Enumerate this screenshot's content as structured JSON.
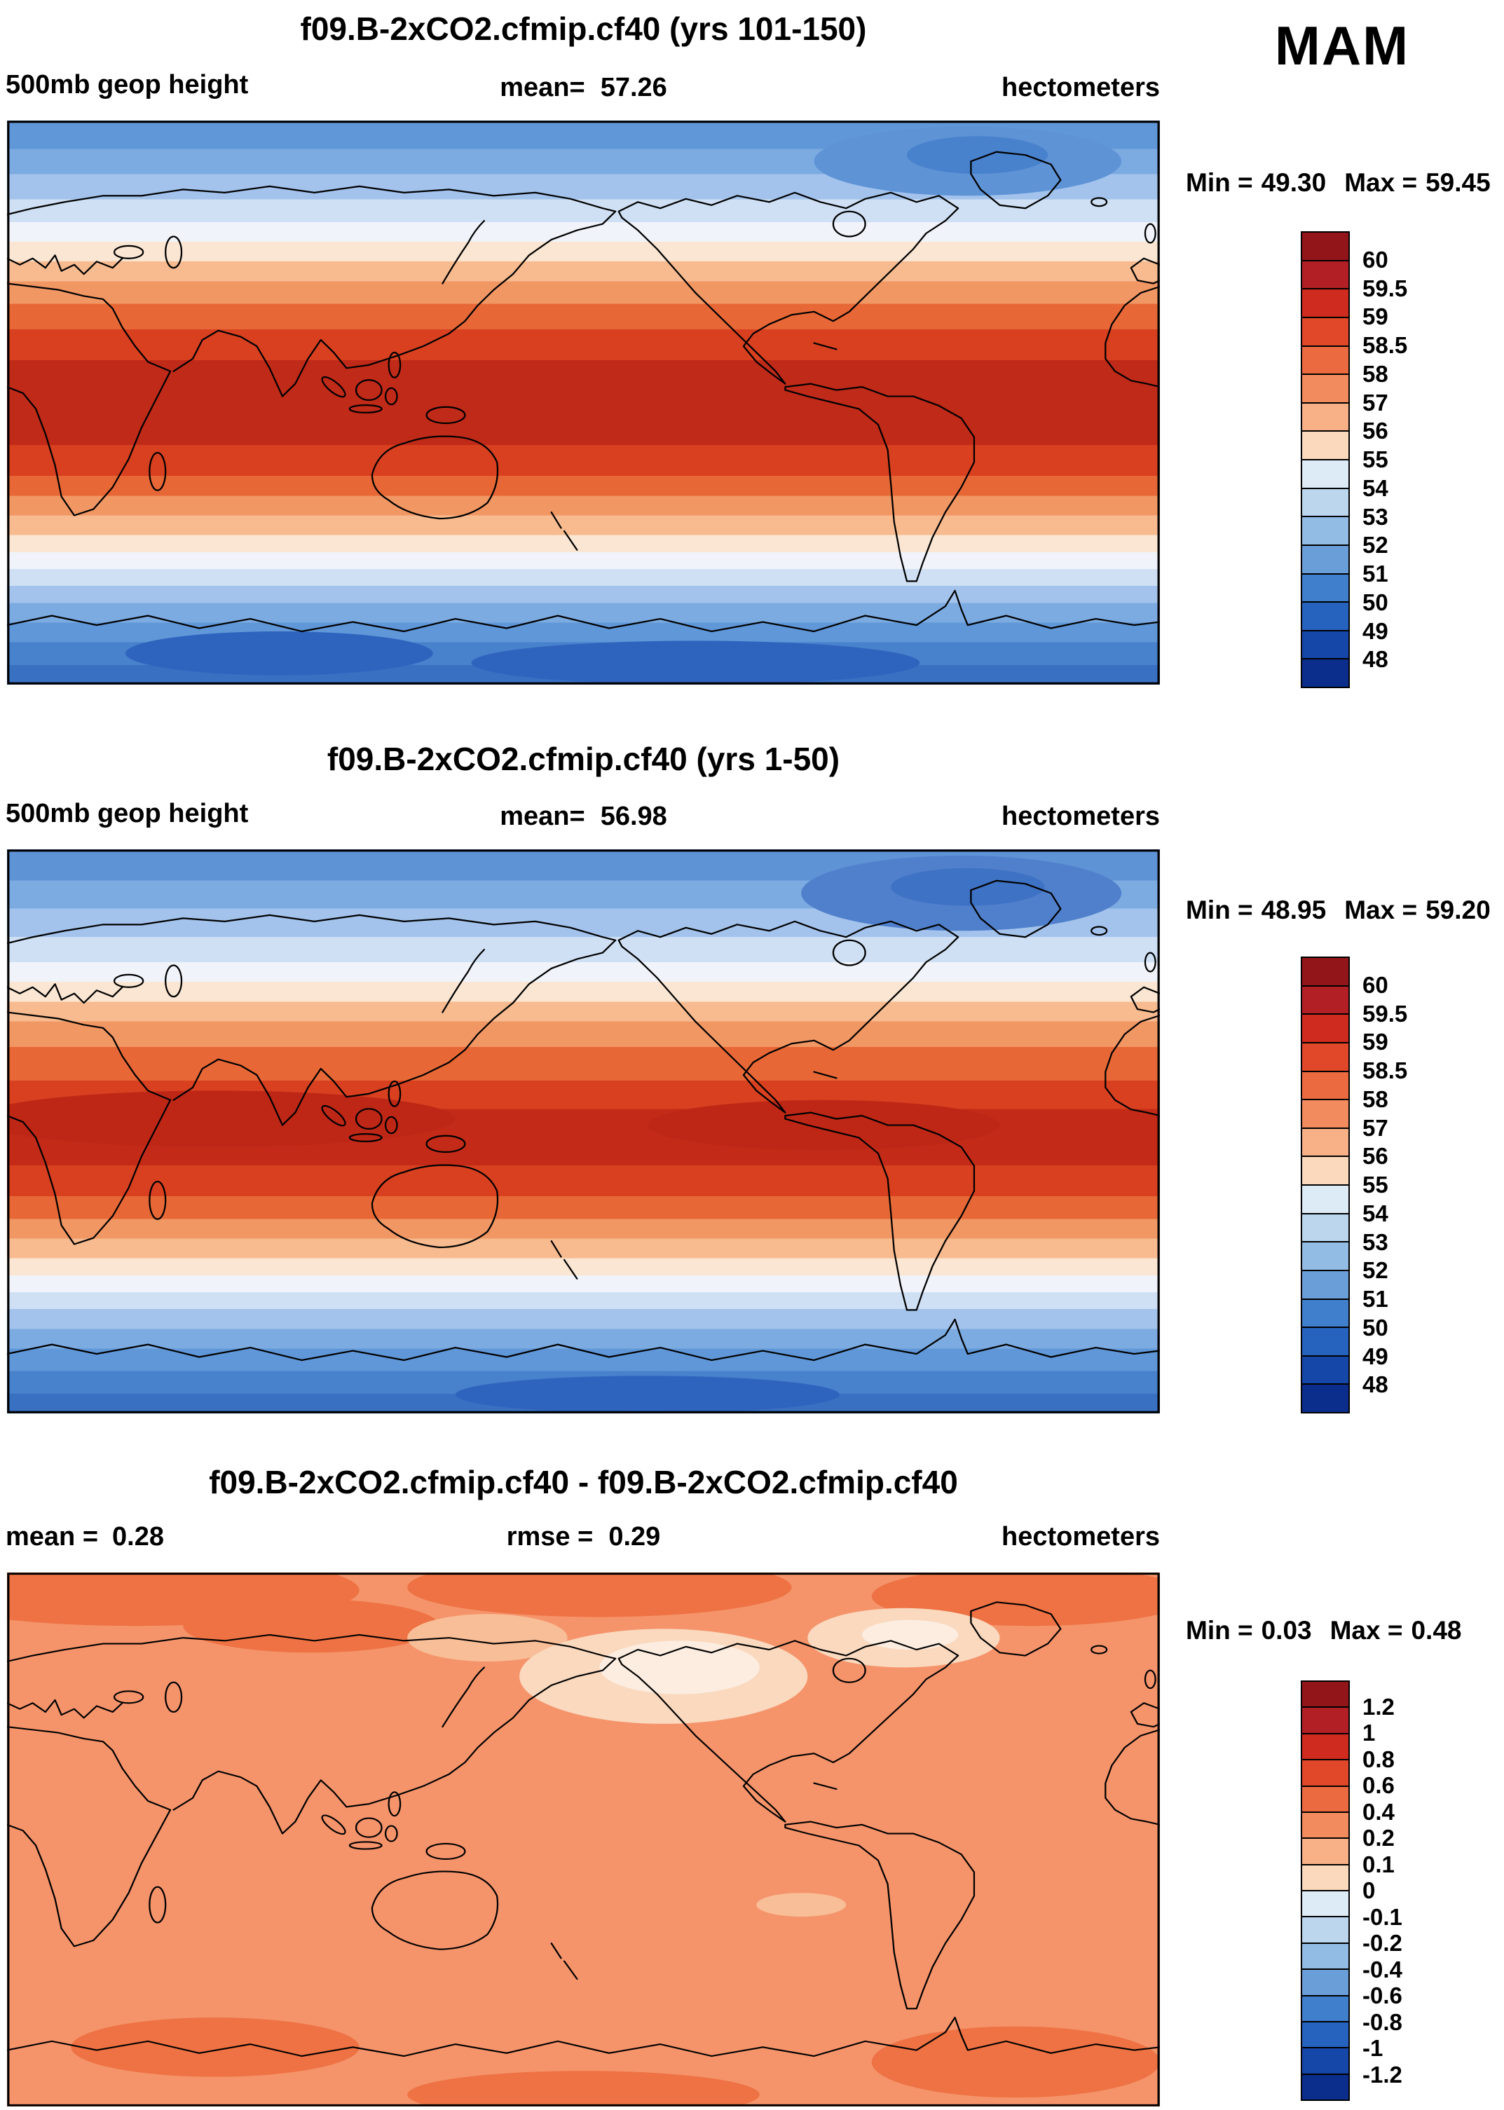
{
  "season_label": "MAM",
  "panels": [
    {
      "title": "f09.B-2xCO2.cfmip.cf40 (yrs 101-150)",
      "field_label": "500mb geop height",
      "mean_label": "mean=",
      "mean_value": "57.26",
      "units": "hectometers",
      "min_label": "Min =",
      "min_value": "49.30",
      "max_label": "Max =",
      "max_value": "59.45",
      "colorbar": {
        "labels": [
          "60",
          "59.5",
          "59",
          "58.5",
          "58",
          "57",
          "56",
          "55",
          "54",
          "53",
          "52",
          "51",
          "50",
          "49",
          "48"
        ],
        "colors": [
          "#921519",
          "#B22025",
          "#CF2B1E",
          "#E1482A",
          "#EC6A40",
          "#F28B5E",
          "#F8B187",
          "#FBD9BC",
          "#DDEBF7",
          "#BCD6EE",
          "#93BCE4",
          "#699ED8",
          "#3F7FCB",
          "#2563BE",
          "#1547A8",
          "#0B2E8C"
        ]
      }
    },
    {
      "title": "f09.B-2xCO2.cfmip.cf40 (yrs 1-50)",
      "field_label": "500mb geop height",
      "mean_label": "mean=",
      "mean_value": "56.98",
      "units": "hectometers",
      "min_label": "Min =",
      "min_value": "48.95",
      "max_label": "Max =",
      "max_value": "59.20",
      "colorbar": {
        "labels": [
          "60",
          "59.5",
          "59",
          "58.5",
          "58",
          "57",
          "56",
          "55",
          "54",
          "53",
          "52",
          "51",
          "50",
          "49",
          "48"
        ],
        "colors": [
          "#921519",
          "#B22025",
          "#CF2B1E",
          "#E1482A",
          "#EC6A40",
          "#F28B5E",
          "#F8B187",
          "#FBD9BC",
          "#DDEBF7",
          "#BCD6EE",
          "#93BCE4",
          "#699ED8",
          "#3F7FCB",
          "#2563BE",
          "#1547A8",
          "#0B2E8C"
        ]
      }
    },
    {
      "title": "f09.B-2xCO2.cfmip.cf40 - f09.B-2xCO2.cfmip.cf40",
      "mean_label": "mean =",
      "mean_value": "0.28",
      "rmse_label": "rmse =",
      "rmse_value": "0.29",
      "units": "hectometers",
      "min_label": "Min =",
      "min_value": "0.03",
      "max_label": "Max =",
      "max_value": "0.48",
      "colorbar": {
        "labels": [
          "1.2",
          "1",
          "0.8",
          "0.6",
          "0.4",
          "0.2",
          "0.1",
          "0",
          "-0.1",
          "-0.2",
          "-0.4",
          "-0.6",
          "-0.8",
          "-1",
          "-1.2"
        ],
        "colors": [
          "#921519",
          "#B22025",
          "#CF2B1E",
          "#E1482A",
          "#EC6A40",
          "#F28B5E",
          "#F8B187",
          "#FBD9BC",
          "#DDEBF7",
          "#BCD6EE",
          "#93BCE4",
          "#699ED8",
          "#3F7FCB",
          "#2563BE",
          "#1547A8",
          "#0B2E8C"
        ]
      }
    }
  ],
  "chart_data": [
    {
      "type": "heatmap",
      "subtype": "filled-contour global lat-lon map",
      "title": "f09.B-2xCO2.cfmip.cf40 (yrs 101-150)",
      "variable": "500mb geop height",
      "units": "hectometers",
      "season": "MAM",
      "mean": 57.26,
      "min": 49.3,
      "max": 59.45,
      "contour_levels": [
        48,
        49,
        50,
        51,
        52,
        53,
        54,
        55,
        56,
        57,
        58,
        58.5,
        59,
        59.5,
        60
      ],
      "legend_position": "right",
      "pattern": "zonal bands: highest values (59-60) across tropics and subtropics, decreasing poleward to 48-52 near both poles"
    },
    {
      "type": "heatmap",
      "subtype": "filled-contour global lat-lon map",
      "title": "f09.B-2xCO2.cfmip.cf40 (yrs 1-50)",
      "variable": "500mb geop height",
      "units": "hectometers",
      "season": "MAM",
      "mean": 56.98,
      "min": 48.95,
      "max": 59.2,
      "contour_levels": [
        48,
        49,
        50,
        51,
        52,
        53,
        54,
        55,
        56,
        57,
        58,
        58.5,
        59,
        59.5,
        60
      ],
      "legend_position": "right",
      "pattern": "zonal bands similar to case 1 but slightly lower heights overall"
    },
    {
      "type": "heatmap",
      "subtype": "difference map (case1 - case2)",
      "title": "f09.B-2xCO2.cfmip.cf40 - f09.B-2xCO2.cfmip.cf40",
      "units": "hectometers",
      "season": "MAM",
      "mean": 0.28,
      "rmse": 0.29,
      "min": 0.03,
      "max": 0.48,
      "contour_levels": [
        -1.2,
        -1,
        -0.8,
        -0.6,
        -0.4,
        -0.2,
        -0.1,
        0,
        0.1,
        0.2,
        0.4,
        0.6,
        0.8,
        1,
        1.2
      ],
      "legend_position": "right",
      "pattern": "positive differences everywhere (mostly 0.2-0.4), near-zero patches over northern North America / North Pacific, larger positive patches at high northern latitudes and near Antarctica"
    }
  ]
}
